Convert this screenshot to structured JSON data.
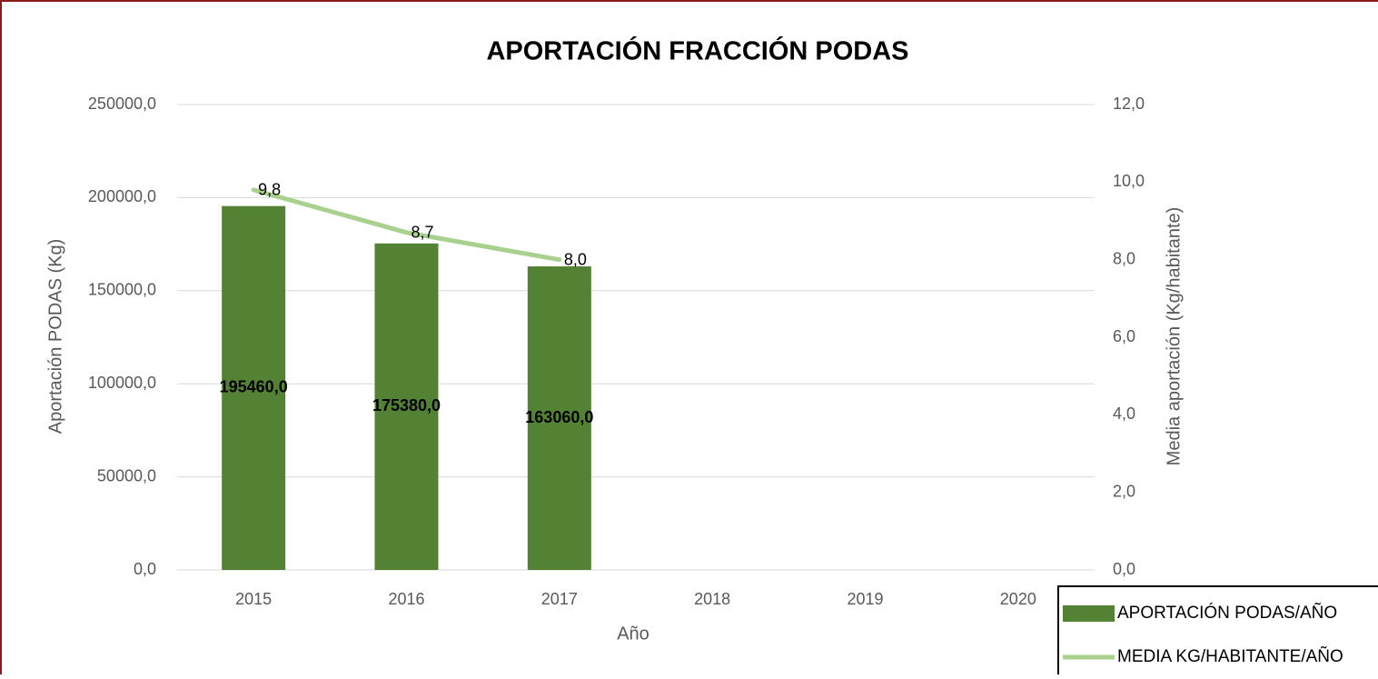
{
  "chart_data": {
    "type": "bar",
    "title": "APORTACIÓN FRACCIÓN PODAS",
    "x_label": "Año",
    "y_label": "Aportación PODAS (Kg)",
    "y2_label": "Media aportación (Kg/habitante)",
    "categories": [
      "2015",
      "2016",
      "2017",
      "2018",
      "2019",
      "2020"
    ],
    "series": [
      {
        "name": "APORTACIÓN PODAS/AÑO",
        "type": "bar",
        "color": "#548235",
        "values": [
          195460,
          175380,
          163060,
          null,
          null,
          null
        ],
        "value_labels": [
          "195460,0",
          "175380,0",
          "163060,0",
          null,
          null,
          null
        ]
      },
      {
        "name": "MEDIA KG/HABITANTE/AÑO",
        "type": "line",
        "axis": "y2",
        "color": "#a9d18e",
        "values": [
          9.8,
          8.7,
          8.0,
          null,
          null,
          null
        ],
        "value_labels": [
          "9,8",
          "8,7",
          "8,0",
          null,
          null,
          null
        ]
      }
    ],
    "ylim": [
      0,
      250000
    ],
    "yticks": [
      {
        "value": 0,
        "label": "0,0"
      },
      {
        "value": 50000,
        "label": "50000,0"
      },
      {
        "value": 100000,
        "label": "100000,0"
      },
      {
        "value": 150000,
        "label": "150000,0"
      },
      {
        "value": 200000,
        "label": "200000,0"
      },
      {
        "value": 250000,
        "label": "250000,0"
      }
    ],
    "y2lim": [
      0,
      12
    ],
    "y2ticks": [
      {
        "value": 0,
        "label": "0,0"
      },
      {
        "value": 2,
        "label": "2,0"
      },
      {
        "value": 4,
        "label": "4,0"
      },
      {
        "value": 6,
        "label": "6,0"
      },
      {
        "value": 8,
        "label": "8,0"
      },
      {
        "value": 10,
        "label": "10,0"
      },
      {
        "value": 12,
        "label": "12,0"
      }
    ],
    "grid": true,
    "legend": "lower right"
  }
}
